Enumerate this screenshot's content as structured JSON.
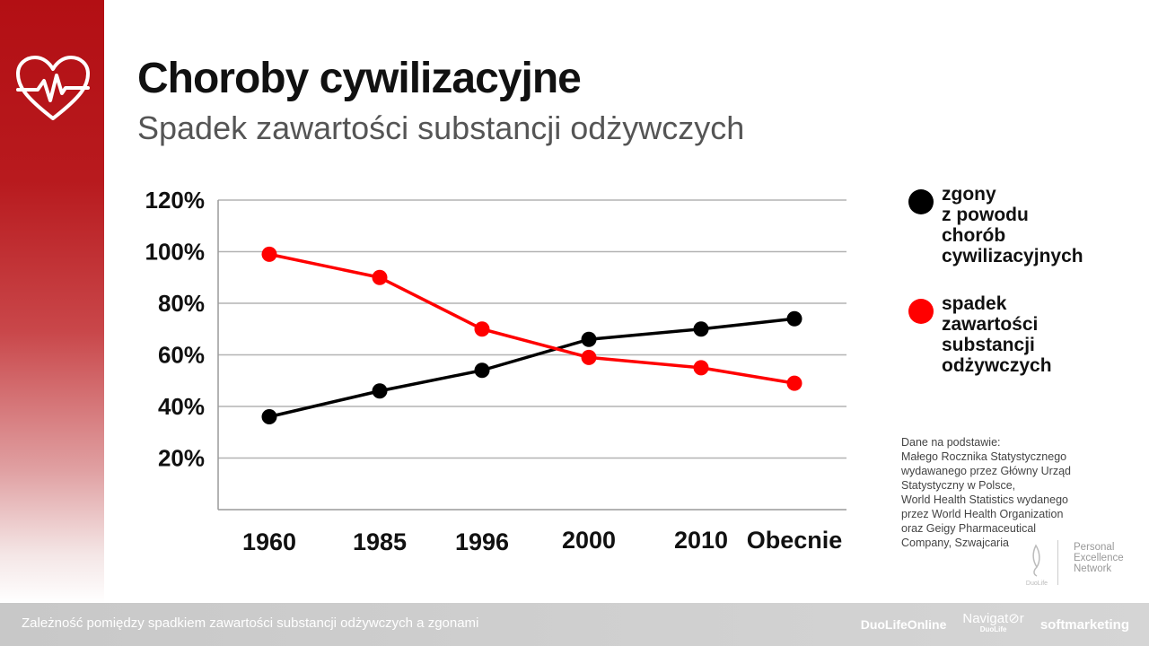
{
  "header": {
    "title": "Choroby cywilizacyjne",
    "subtitle": "Spadek zawartości substancji odżywczych"
  },
  "chart_data": {
    "type": "line",
    "categories": [
      "1960",
      "1985",
      "1996",
      "2000",
      "2010",
      "Obecnie"
    ],
    "y_ticks": [
      "20%",
      "40%",
      "60%",
      "80%",
      "100%",
      "120%"
    ],
    "ylim": [
      0,
      120
    ],
    "grid": true,
    "legend_position": "right",
    "series": [
      {
        "name": "zgony z powodu chorób cywilizacyjnych",
        "color": "#000000",
        "values": [
          36,
          46,
          54,
          66,
          70,
          74
        ]
      },
      {
        "name": "spadek zawartości substancji odżywczych",
        "color": "#ff0000",
        "values": [
          99,
          90,
          70,
          59,
          55,
          49
        ]
      }
    ]
  },
  "legend": [
    {
      "lines": [
        "zgony",
        "z powodu",
        "chorób",
        "cywilizacyjnych"
      ],
      "color": "#000000"
    },
    {
      "lines": [
        "spadek",
        "zawartości",
        "substancji",
        "odżywczych"
      ],
      "color": "#ff0000"
    }
  ],
  "source": {
    "lines": [
      "Dane na podstawie:",
      "Małego Rocznika Statystycznego",
      "wydawanego przez Główny Urząd",
      "Statystyczny w Polsce,",
      "World Health Statistics wydanego",
      "przez World Health Organization",
      "oraz Geigy Pharmaceutical",
      "Company, Szwajcaria"
    ]
  },
  "brand": {
    "logo_caption": "DuoLife",
    "lines": [
      "Personal",
      "Excellence",
      "Network"
    ]
  },
  "footer": {
    "text": "Zależność pomiędzy spadkiem zawartości substancji odżywczych a zgonami",
    "logos": {
      "duolife_online": "DuoLifeOnline",
      "navigator": "Navigat⊘r",
      "navigator_sub": "DuoLife",
      "softmarketing": "softmarketing"
    }
  },
  "colors": {
    "accent": "#b30f14",
    "series_black": "#000000",
    "series_red": "#ff0000"
  },
  "icons": {
    "sidebar": "heart-pulse-icon"
  }
}
